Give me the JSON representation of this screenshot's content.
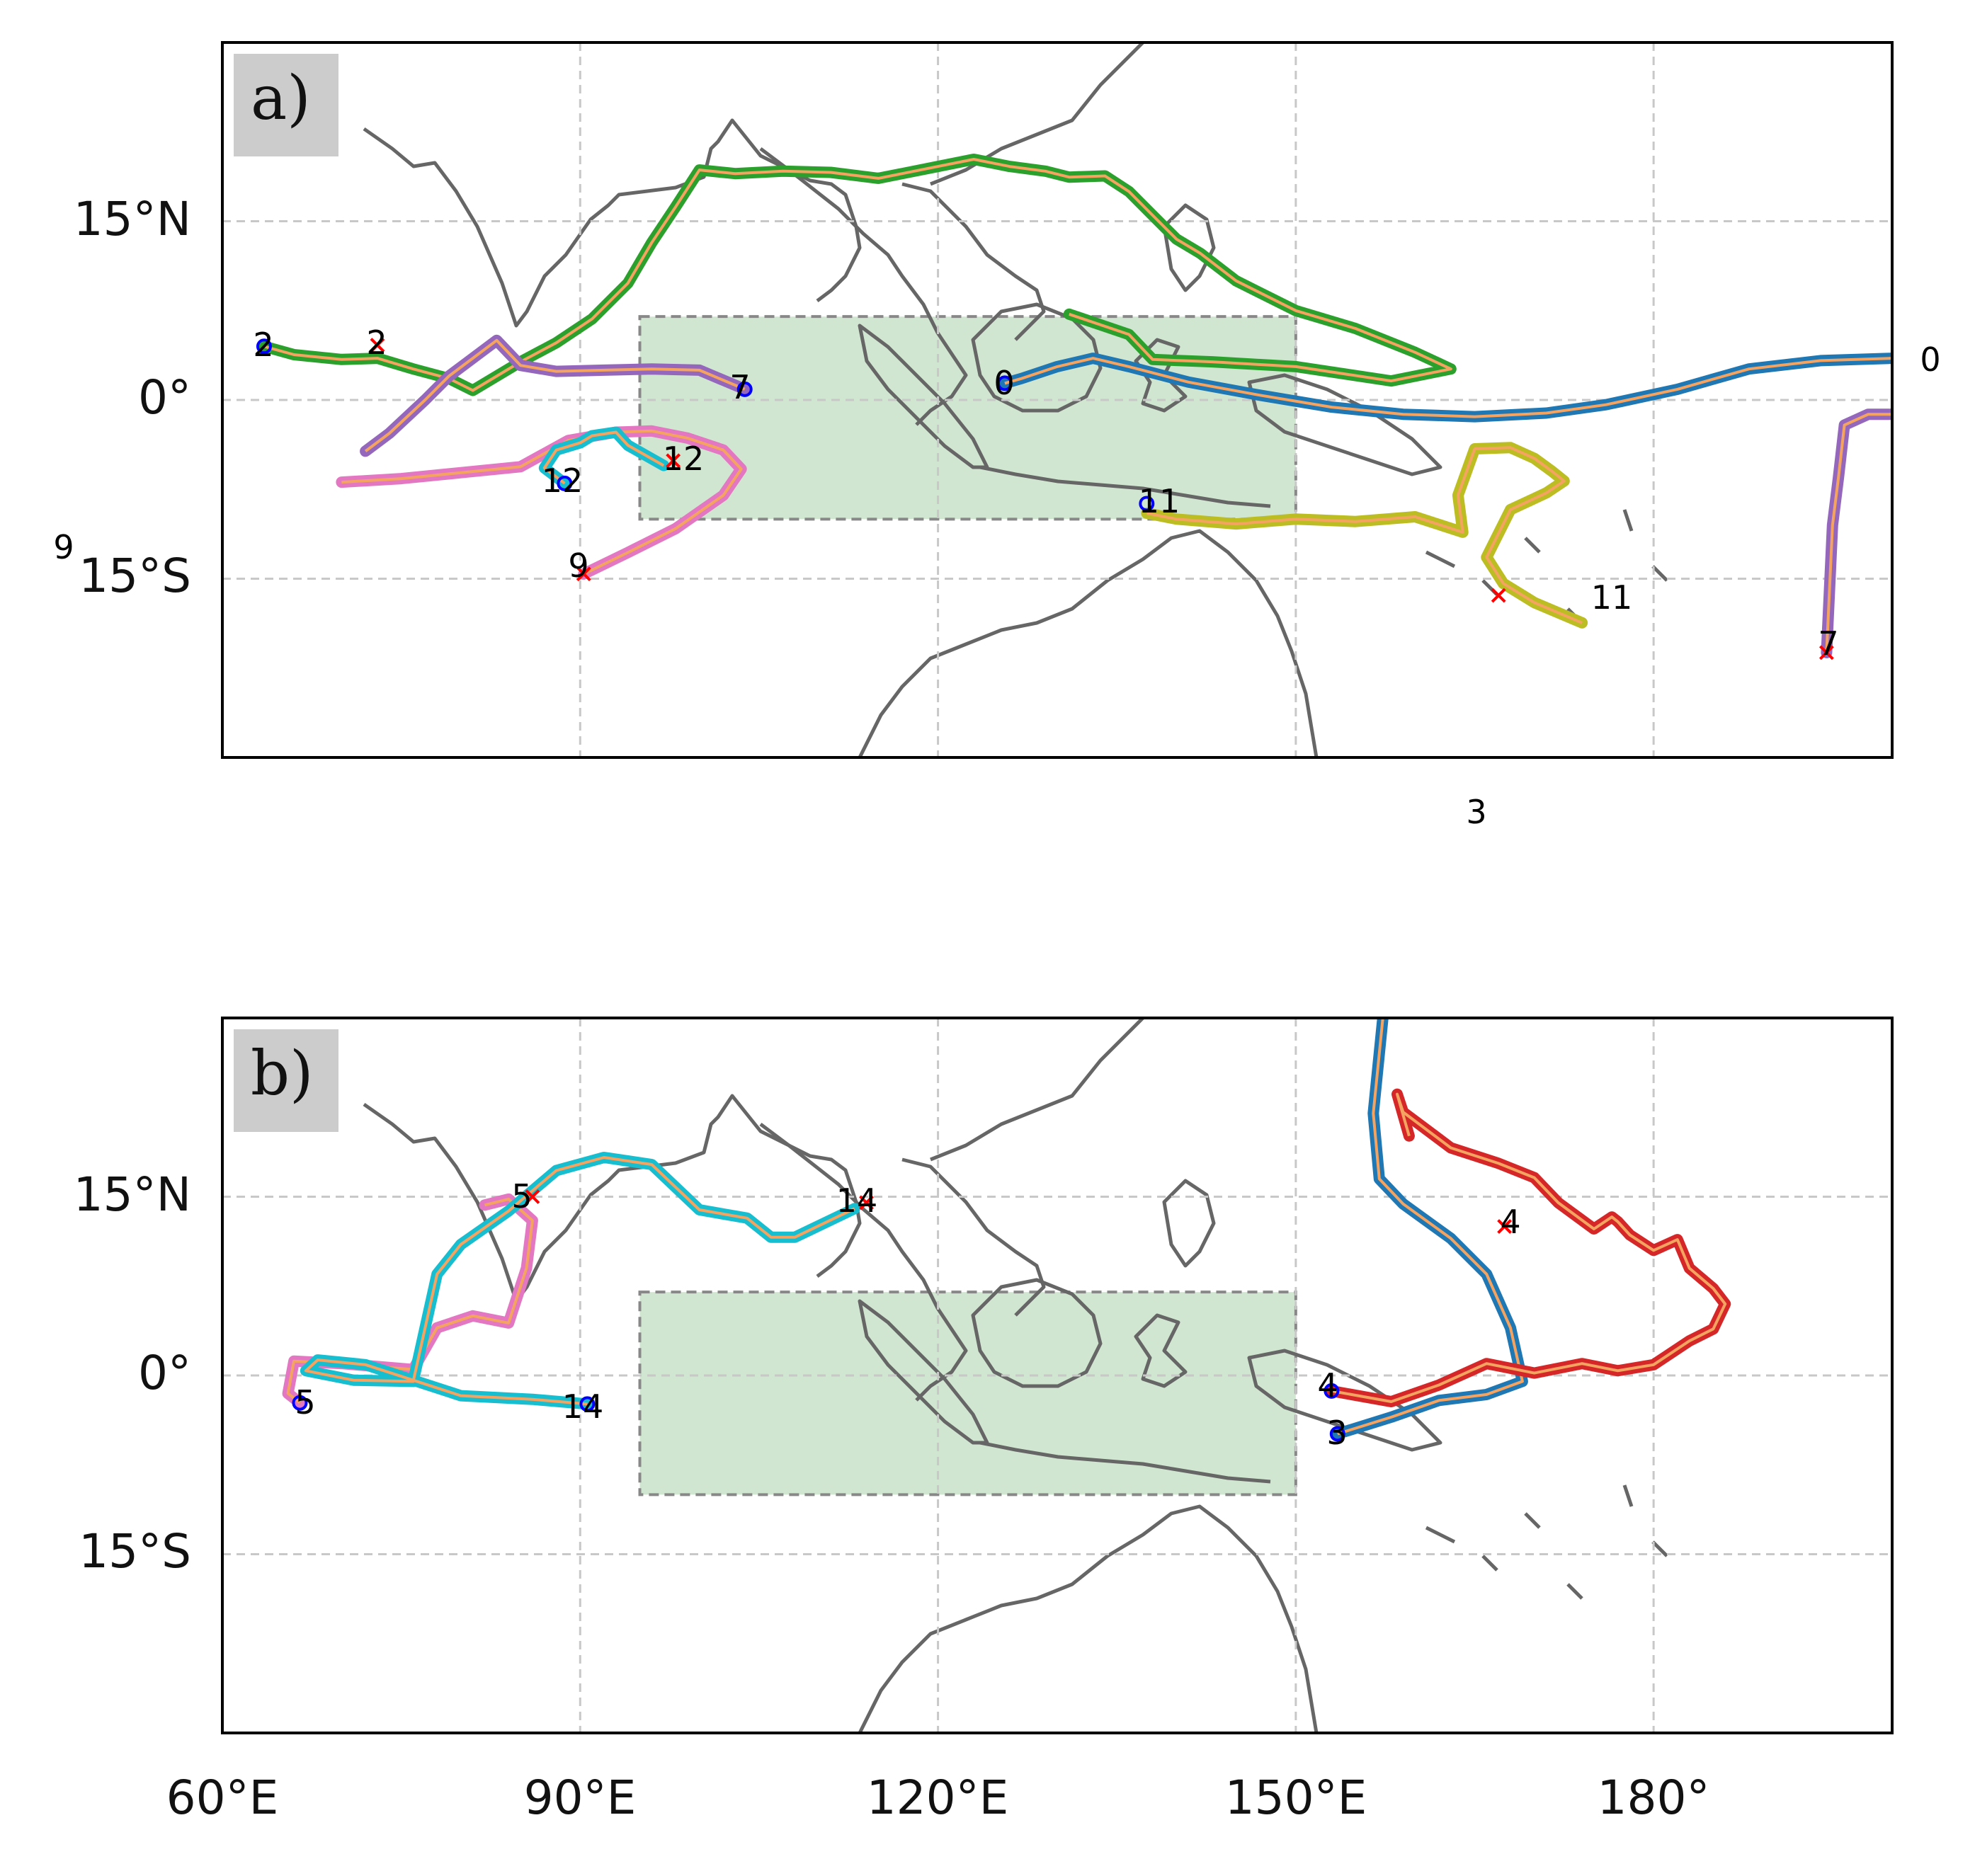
{
  "figure": {
    "panels": [
      {
        "id": "a",
        "label": "a)",
        "y_ticks": [
          "15°N",
          "0°",
          "15°S"
        ],
        "track_numbers": [
          "2",
          "2",
          "7",
          "0",
          "12",
          "12",
          "9",
          "11",
          "11",
          "7"
        ],
        "stray_numbers": [
          "0",
          "9",
          "3"
        ]
      },
      {
        "id": "b",
        "label": "b)",
        "y_ticks": [
          "15°N",
          "0°",
          "15°S"
        ],
        "track_numbers": [
          "5",
          "5",
          "14",
          "14",
          "4",
          "4",
          "3"
        ],
        "stray_numbers": []
      }
    ],
    "x_ticks": [
      "60°E",
      "90°E",
      "120°E",
      "150°E",
      "180°"
    ]
  },
  "chart_data": [
    {
      "type": "map",
      "panel": "a)",
      "xlim": [
        60,
        200
      ],
      "ylim": [
        -30,
        30
      ],
      "grid": true,
      "highlight_box": {
        "lon": [
          95,
          150
        ],
        "lat": [
          -10,
          7
        ]
      },
      "tracks": [
        {
          "label": "0",
          "color": "#1f77b4",
          "lon": [
            125.6,
            127,
            130,
            133,
            136,
            141,
            147,
            153,
            159,
            165,
            171,
            176,
            182,
            188,
            194,
            200
          ],
          "lat": [
            1.4,
            1.8,
            2.8,
            3.5,
            2.8,
            1.5,
            0.4,
            -0.6,
            -1.2,
            -1.4,
            -1.1,
            -0.4,
            0.9,
            2.6,
            3.3,
            3.5
          ]
        },
        {
          "label": "2",
          "color": "#2ca02c",
          "lon": [
            63.5,
            66,
            70,
            73,
            76,
            79,
            81,
            85,
            88,
            91,
            94,
            96,
            98,
            100,
            103,
            107,
            111,
            115,
            120,
            123,
            126,
            129,
            131,
            134,
            136,
            138,
            140,
            142,
            145,
            150,
            155,
            160,
            163,
            158,
            150,
            143,
            138,
            136,
            131
          ],
          "lat": [
            4.5,
            3.8,
            3.4,
            3.5,
            2.6,
            1.8,
            0.8,
            3.2,
            4.8,
            6.8,
            9.8,
            13.2,
            16.2,
            19.3,
            19,
            19.2,
            19.1,
            18.6,
            19.6,
            20.2,
            19.6,
            19.2,
            18.7,
            18.8,
            17.5,
            15.5,
            13.5,
            12.3,
            10,
            7.5,
            6,
            4,
            2.6,
            1.6,
            2.8,
            3.2,
            3.4,
            5.5,
            7.2
          ]
        },
        {
          "label": "7",
          "color": "#9467bd",
          "lon": [
            103.8,
            100,
            96,
            92,
            88,
            85,
            83,
            79,
            77,
            74,
            72
          ],
          "lat": [
            0.9,
            2.5,
            2.6,
            2.5,
            2.4,
            2.9,
            5,
            2,
            0,
            -2.8,
            -4.3
          ]
        },
        {
          "label": "7",
          "color": "#9467bd",
          "lon": [
            200,
            198,
            196,
            195.5,
            195,
            194.5
          ],
          "lat": [
            -1.2,
            -1.2,
            -2.1,
            -6.5,
            -10.5,
            -21.2
          ]
        },
        {
          "label": "9",
          "color": "#e377c2",
          "lon": [
            70,
            75,
            80,
            85,
            89,
            93,
            96,
            99,
            102,
            103.5,
            102,
            98,
            94,
            90.3
          ],
          "lat": [
            -6.9,
            -6.6,
            -6.1,
            -5.6,
            -3.4,
            -2.7,
            -2.6,
            -3.2,
            -4.2,
            -5.8,
            -8,
            -10.8,
            -12.8,
            -14.6
          ]
        },
        {
          "label": "11",
          "color": "#bcbd22",
          "lon": [
            137.5,
            140,
            145,
            150,
            155,
            160,
            164,
            163.6,
            165,
            168,
            170,
            171.5,
            172.5,
            171,
            168,
            166,
            167.4,
            170,
            174
          ],
          "lat": [
            -9.5,
            -10,
            -10.4,
            -10,
            -10.2,
            -9.8,
            -11.1,
            -8,
            -4.1,
            -4,
            -4.9,
            -6,
            -6.8,
            -7.8,
            -9.2,
            -13.2,
            -15.4,
            -17,
            -18.7
          ]
        },
        {
          "label": "12",
          "color": "#17becf",
          "lon": [
            88.7,
            87,
            88,
            90,
            91,
            93,
            94,
            97
          ],
          "lat": [
            -7,
            -5.7,
            -4.2,
            -3.6,
            -3,
            -2.7,
            -3.8,
            -5.5
          ]
        }
      ],
      "start_markers": [
        {
          "label": "2",
          "lon": 63.5,
          "lat": 4.5
        },
        {
          "label": "7",
          "lon": 103.8,
          "lat": 0.9
        },
        {
          "label": "0",
          "lon": 125.6,
          "lat": 1.4
        },
        {
          "label": "12",
          "lon": 88.7,
          "lat": -7
        },
        {
          "label": "11",
          "lon": 137.5,
          "lat": -8.7
        }
      ],
      "end_markers": [
        {
          "label": "2",
          "lon": 73,
          "lat": 4.6
        },
        {
          "label": "12",
          "lon": 97.8,
          "lat": -5.1
        },
        {
          "label": "9",
          "lon": 90.3,
          "lat": -14.6
        },
        {
          "label": "11",
          "lon": 167,
          "lat": -16.4
        },
        {
          "label": "7",
          "lon": 194.5,
          "lat": -21.2
        }
      ]
    },
    {
      "type": "map",
      "panel": "b)",
      "xlim": [
        60,
        200
      ],
      "ylim": [
        -30,
        30
      ],
      "grid": true,
      "highlight_box": {
        "lon": [
          95,
          150
        ],
        "lat": [
          -10,
          7
        ]
      },
      "tracks": [
        {
          "label": "5",
          "color": "#e377c2",
          "lon": [
            66.5,
            65.5,
            66,
            70,
            76,
            78,
            81,
            84,
            85.5,
            86,
            84,
            82
          ],
          "lat": [
            -2.3,
            -1.5,
            1.2,
            1,
            0.5,
            4,
            5,
            4.4,
            9,
            13,
            14.8,
            14.3
          ]
        },
        {
          "label": "14",
          "color": "#17becf",
          "lon": [
            90.6,
            86,
            80,
            72,
            68,
            67,
            71,
            76,
            78,
            80,
            84,
            88,
            92,
            96,
            100,
            104,
            106,
            108,
            113
          ],
          "lat": [
            -2.4,
            -2,
            -1.7,
            0.9,
            1.3,
            0.4,
            -0.4,
            -0.5,
            8.5,
            11,
            13.8,
            17.2,
            18.3,
            17.7,
            13.9,
            13.2,
            11.6,
            11.6,
            14
          ]
        },
        {
          "label": "3",
          "color": "#1f77b4",
          "lon": [
            157.3,
            156.5,
            157,
            159,
            163,
            166,
            168,
            169,
            166,
            162,
            158,
            153.5
          ],
          "lat": [
            30,
            22,
            16.5,
            14.4,
            11.5,
            8.5,
            4,
            -0.5,
            -1.6,
            -2.1,
            -3.5,
            -4.9
          ]
        },
        {
          "label": "4",
          "color": "#d62728",
          "lon": [
            153,
            158,
            162,
            166,
            170,
            174,
            177,
            180,
            183,
            185,
            186,
            185,
            183,
            182,
            180,
            178,
            177,
            176.5,
            175,
            172,
            170,
            167,
            163,
            159,
            158.5,
            159.5
          ],
          "lat": [
            -1.3,
            -2.2,
            -0.8,
            1,
            0.2,
            1,
            0.4,
            0.9,
            2.9,
            3.9,
            6,
            7.3,
            9,
            11.4,
            10.5,
            11.8,
            12.9,
            13.3,
            12.3,
            14.5,
            16.6,
            17.8,
            19.1,
            22.1,
            23.6,
            20.1
          ]
        }
      ],
      "start_markers": [
        {
          "label": "5",
          "lon": 66.5,
          "lat": -2.3
        },
        {
          "label": "14",
          "lon": 90.6,
          "lat": -2.4
        },
        {
          "label": "4",
          "lon": 153,
          "lat": -1.3
        },
        {
          "label": "3",
          "lon": 153.5,
          "lat": -4.9
        }
      ],
      "end_markers": [
        {
          "label": "5",
          "lon": 86,
          "lat": 15
        },
        {
          "label": "14",
          "lon": 114,
          "lat": 14.5
        },
        {
          "label": "4",
          "lon": 167.5,
          "lat": 12.5
        }
      ]
    }
  ]
}
